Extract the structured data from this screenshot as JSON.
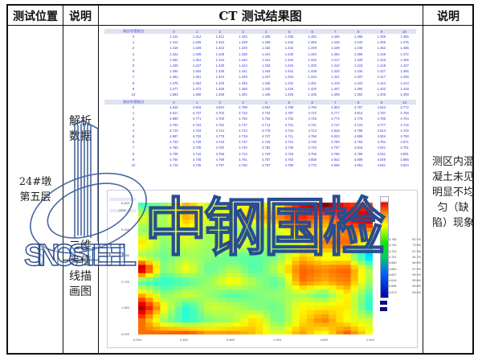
{
  "header": {
    "col1": "测试位置",
    "col2": "说明",
    "col3": "CT 测试结果图",
    "col4": "说明"
  },
  "location": "24#墩 第五层",
  "desc_top": "解析数据",
  "desc_bottom": "二维等值线描画图",
  "conclusion": "测区内混凝土未见明显不均匀（缺陷）现象",
  "table1": {
    "corner": "测点号/受检点",
    "cols": [
      "0",
      "1",
      "2",
      "3",
      "4",
      "5",
      "6",
      "7",
      "8",
      "9",
      "10"
    ],
    "rows": [
      [
        "0",
        "1.412",
        "1.412",
        "1.412",
        "1.425",
        "1.425",
        "1.435",
        "1.452",
        "1.465",
        "1.465",
        "1.459",
        "1.455"
      ],
      [
        "1",
        "1.412",
        "1.436",
        "1.422",
        "1.439",
        "1.439",
        "1.442",
        "1.456",
        "1.446",
        "1.442",
        "1.466",
        "1.475"
      ],
      [
        "2",
        "1.419",
        "1.426",
        "1.422",
        "1.429",
        "1.432",
        "1.442",
        "1.449",
        "1.439",
        "1.446",
        "1.452",
        "1.485"
      ],
      [
        "3",
        "1.424",
        "1.439",
        "1.428",
        "1.435",
        "1.441",
        "1.440",
        "1.440",
        "1.452",
        "1.456",
        "1.446",
        "1.472"
      ],
      [
        "4",
        "1.451",
        "1.451",
        "1.444",
        "1.434",
        "1.441",
        "1.434",
        "1.445",
        "1.417",
        "1.429",
        "1.420",
        "1.455"
      ],
      [
        "5",
        "1.430",
        "1.447",
        "1.430",
        "1.444",
        "1.433",
        "1.444",
        "1.430",
        "1.412",
        "1.419",
        "1.419",
        "1.447"
      ],
      [
        "6",
        "1.454",
        "1.454",
        "1.438",
        "1.441",
        "1.444",
        "1.441",
        "1.438",
        "1.420",
        "1.434",
        "1.427",
        "1.465"
      ],
      [
        "7",
        "1.451",
        "1.451",
        "1.444",
        "1.445",
        "1.427",
        "1.434",
        "1.434",
        "1.421",
        "1.407",
        "1.417",
        "1.426"
      ],
      [
        "8",
        "1.475",
        "1.464",
        "1.445",
        "1.445",
        "1.445",
        "1.442",
        "1.451",
        "1.418",
        "1.423",
        "1.414",
        "1.413"
      ],
      [
        "9",
        "1.477",
        "1.472",
        "1.448",
        "1.458",
        "1.442",
        "1.429",
        "1.420",
        "1.407",
        "1.392",
        "1.402",
        "1.416"
      ],
      [
        "10",
        "1.583",
        "1.486",
        "1.459",
        "1.462",
        "1.449",
        "1.435",
        "1.435",
        "1.405",
        "1.392",
        "1.405",
        "1.409"
      ]
    ]
  },
  "table2": {
    "corner": "测点号/受检点",
    "cols": [
      "0",
      "1",
      "2",
      "3",
      "4",
      "5",
      "6",
      "7",
      "8",
      "9",
      "10"
    ],
    "rows": [
      [
        "0",
        "4.816",
        "4.818",
        "4.824",
        "4.799",
        "4.804",
        "4.789",
        "4.756",
        "4.803",
        "4.767",
        "4.822",
        "4.772"
      ],
      [
        "1",
        "4.817",
        "4.737",
        "4.702",
        "4.734",
        "4.744",
        "4.787",
        "4.722",
        "4.777",
        "4.814",
        "4.767",
        "4.756"
      ],
      [
        "2",
        "4.880",
        "4.771",
        "4.700",
        "4.760",
        "4.753",
        "4.732",
        "4.725",
        "4.774",
        "4.776",
        "4.780",
        "4.704"
      ],
      [
        "3",
        "4.792",
        "4.734",
        "4.762",
        "4.737",
        "4.714",
        "4.731",
        "4.741",
        "4.747",
        "4.722",
        "4.777",
        "4.716"
      ],
      [
        "4",
        "4.710",
        "4.704",
        "4.714",
        "4.744",
        "4.779",
        "4.744",
        "4.714",
        "4.818",
        "4.796",
        "4.814",
        "4.745"
      ],
      [
        "5",
        "4.887",
        "4.732",
        "4.775",
        "4.719",
        "4.747",
        "4.711",
        "4.758",
        "4.823",
        "4.809",
        "4.824",
        "4.750"
      ],
      [
        "6",
        "4.740",
        "4.726",
        "4.743",
        "4.737",
        "4.718",
        "4.721",
        "4.730",
        "4.790",
        "4.763",
        "4.761",
        "4.671"
      ],
      [
        "7",
        "4.783",
        "4.735",
        "4.760",
        "4.740",
        "4.782",
        "4.749",
        "4.743",
        "4.757",
        "4.816",
        "4.821",
        "4.751"
      ],
      [
        "8",
        "4.736",
        "4.742",
        "4.766",
        "4.744",
        "4.740",
        "4.733",
        "4.755",
        "4.796",
        "4.780",
        "4.811",
        "4.801"
      ],
      [
        "9",
        "4.764",
        "4.745",
        "4.798",
        "4.761",
        "4.767",
        "4.793",
        "4.808",
        "4.842",
        "4.809",
        "4.849",
        "4.886"
      ],
      [
        "10",
        "4.716",
        "4.735",
        "4.797",
        "4.750",
        "4.767",
        "4.780",
        "4.770",
        "4.858",
        "4.891",
        "4.841",
        "4.824"
      ]
    ]
  },
  "chart": {
    "x_ticks": [
      "0.000",
      "0.400",
      "0.800",
      "1.200",
      "1.600",
      "2.000"
    ],
    "y_ticks": [
      "6.800",
      "5.440",
      "4.080",
      "2.720",
      "1.360",
      "0.000"
    ],
    "color_min": 4.573,
    "color_max": 4.891,
    "colormap": "jet",
    "legend": [
      [
        "4.765",
        "52.7%"
      ],
      [
        "4.744",
        "73.9%"
      ],
      [
        "4.723",
        "87.3%"
      ],
      [
        "4.701",
        "94.7%"
      ],
      [
        "4.680",
        "96.5%"
      ],
      [
        "4.659",
        "97.9%"
      ],
      [
        "4.637",
        "99.2%"
      ],
      [
        "4.616",
        "99.5%"
      ],
      [
        "4.595",
        "99.8%"
      ],
      [
        "4.573",
        "99.4%"
      ]
    ],
    "legend_swatch_colors": [
      "#0a0a8a",
      "#0a0a8a"
    ],
    "info_date": "2026-"
  },
  "watermark": {
    "text_cn": "中钢国检",
    "text_en": "SINOSTEEL",
    "color": "#2a4d8f"
  }
}
